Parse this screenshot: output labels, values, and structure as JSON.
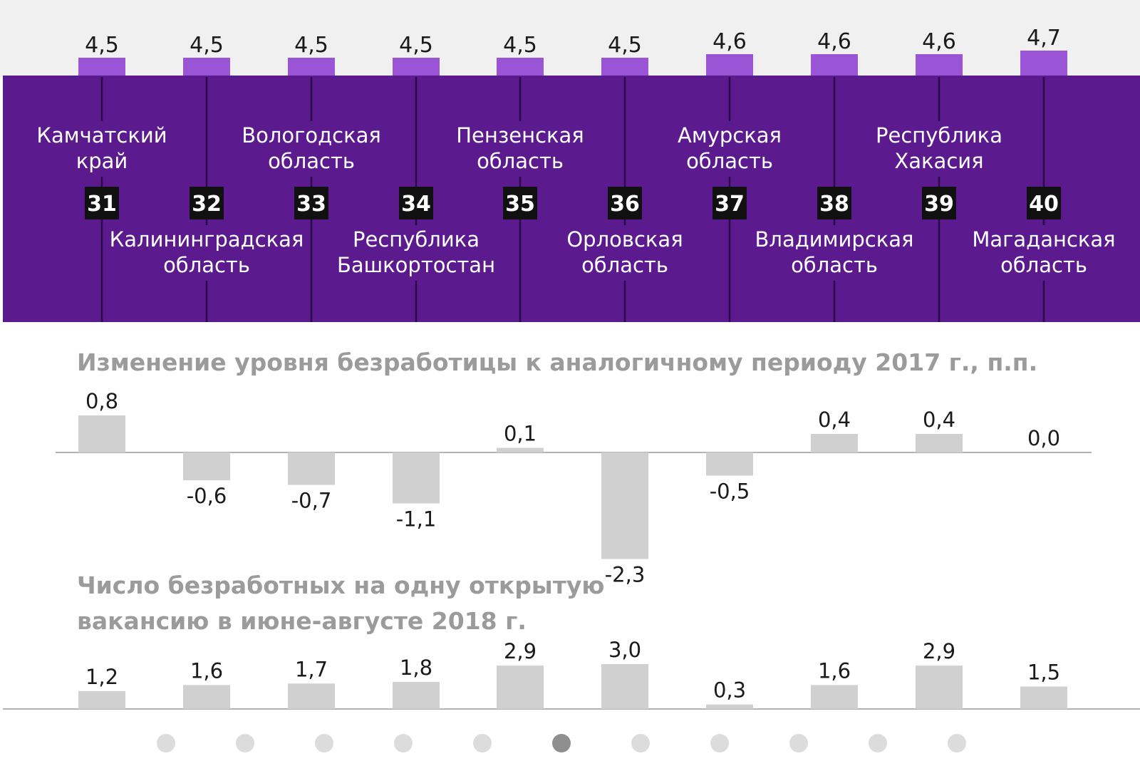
{
  "chart_data": [
    {
      "type": "bar",
      "categories": [
        "Камчатский край",
        "Калининградская область",
        "Вологодская область",
        "Республика Башкортостан",
        "Пензенская область",
        "Орловская область",
        "Амурская область",
        "Владимирская область",
        "Республика Хакасия",
        "Магаданская область"
      ],
      "region_lines": [
        [
          "Камчатский",
          "край"
        ],
        [
          "Калининградская",
          "область"
        ],
        [
          "Вологодская",
          "область"
        ],
        [
          "Республика",
          "Башкортостан"
        ],
        [
          "Пензенская",
          "область"
        ],
        [
          "Орловская",
          "область"
        ],
        [
          "Амурская",
          "область"
        ],
        [
          "Владимирская",
          "область"
        ],
        [
          "Республика",
          "Хакасия"
        ],
        [
          "Магаданская",
          "область"
        ]
      ],
      "ranks": [
        "31",
        "32",
        "33",
        "34",
        "35",
        "36",
        "37",
        "38",
        "39",
        "40"
      ],
      "values": [
        4.5,
        4.5,
        4.5,
        4.5,
        4.5,
        4.5,
        4.6,
        4.6,
        4.6,
        4.7
      ],
      "labels": [
        "4,5",
        "4,5",
        "4,5",
        "4,5",
        "4,5",
        "4,5",
        "4,6",
        "4,6",
        "4,6",
        "4,7"
      ],
      "title": ""
    },
    {
      "type": "bar",
      "title": "Изменение уровня безработицы к аналогичному периоду 2017 г., п.п.",
      "values": [
        0.8,
        -0.6,
        -0.7,
        -1.1,
        0.1,
        -2.3,
        -0.5,
        0.4,
        0.4,
        0.0
      ],
      "labels": [
        "0,8",
        "-0,6",
        "-0,7",
        "-1,1",
        "0,1",
        "-2,3",
        "-0,5",
        "0,4",
        "0,4",
        "0,0"
      ]
    },
    {
      "type": "bar",
      "title_lines": [
        "Число безработных на одну открытую",
        "вакансию в июне-августе 2018 г."
      ],
      "values": [
        1.2,
        1.6,
        1.7,
        1.8,
        2.9,
        3.0,
        0.3,
        1.6,
        2.9,
        1.5
      ],
      "labels": [
        "1,2",
        "1,6",
        "1,7",
        "1,8",
        "2,9",
        "3,0",
        "0,3",
        "1,6",
        "2,9",
        "1,5"
      ]
    }
  ],
  "pagination": {
    "count": 11,
    "active": 5
  },
  "colors": {
    "band": "#5b1a8e",
    "bar_top": "#9a55d6",
    "top_bg": "#f0f0f0",
    "gray_bar": "#d0d0d0",
    "rank_bg": "#111111",
    "title_gray": "#9b9b9b",
    "dot": "#dcdcdc",
    "dot_active": "#8f8f8f"
  }
}
